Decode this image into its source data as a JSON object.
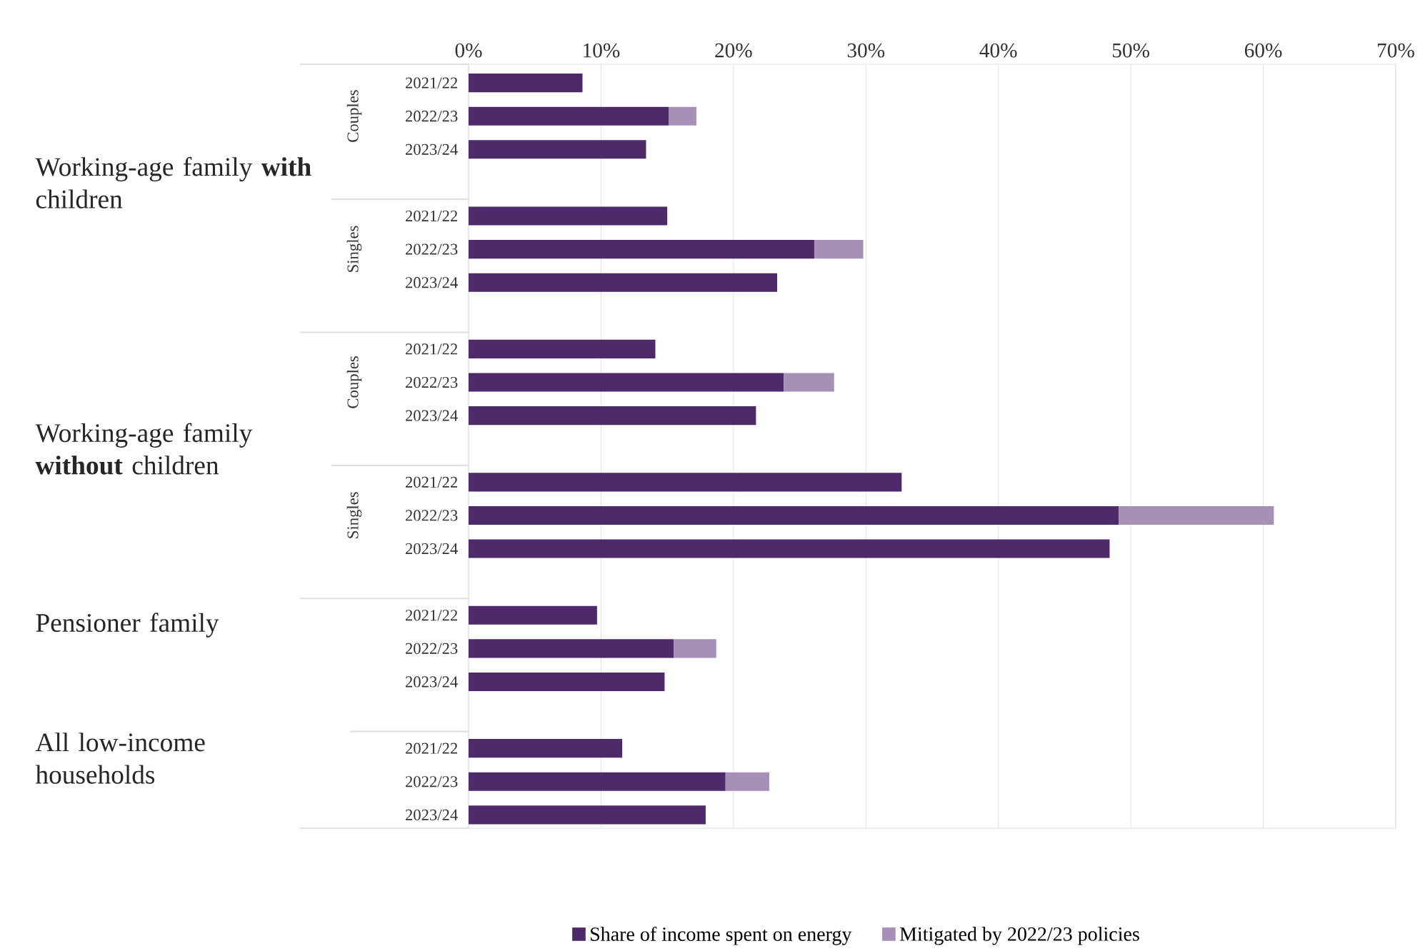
{
  "chart_data": {
    "type": "bar",
    "orientation": "horizontal",
    "stacked": true,
    "categories": [
      "2021/22",
      "2022/23",
      "2023/24",
      null,
      "2021/22",
      "2022/23",
      "2023/24",
      null,
      "2021/22",
      "2022/23",
      "2023/24",
      null,
      "2021/22",
      "2022/23",
      "2023/24",
      null,
      "2021/22",
      "2022/23",
      "2023/24",
      null,
      "2021/22",
      "2022/23",
      "2023/24"
    ],
    "series": [
      {
        "name": "Share of income spent on energy",
        "color": "#4f2a6b",
        "values": [
          8.6,
          15.1,
          13.4,
          null,
          15.0,
          26.1,
          23.3,
          null,
          14.1,
          23.8,
          21.7,
          null,
          32.7,
          49.1,
          48.4,
          null,
          9.7,
          15.5,
          14.8,
          null,
          11.6,
          19.4,
          17.9
        ]
      },
      {
        "name": "Mitigated by 2022/23 policies",
        "color": "#a690b8",
        "values": [
          null,
          2.1,
          null,
          null,
          null,
          3.7,
          null,
          null,
          null,
          3.8,
          null,
          null,
          null,
          11.7,
          null,
          null,
          null,
          3.2,
          null,
          null,
          null,
          3.3,
          null
        ]
      }
    ],
    "xlim": [
      0,
      70
    ],
    "xticks": [
      {
        "value": 0,
        "label": "0%"
      },
      {
        "value": 10,
        "label": "10%"
      },
      {
        "value": 20,
        "label": "20%"
      },
      {
        "value": 30,
        "label": "30%"
      },
      {
        "value": 40,
        "label": "40%"
      },
      {
        "value": 50,
        "label": "50%"
      },
      {
        "value": 60,
        "label": "60%"
      },
      {
        "value": 70,
        "label": "70%"
      }
    ],
    "grid": "x",
    "legend": "bottom",
    "annotations": [
      "Working-age family **with** children",
      "Working-age family **without** children",
      "Pensioner family",
      "All low-income households",
      "Couples",
      "Singles",
      "Couples",
      "Singles"
    ]
  }
}
